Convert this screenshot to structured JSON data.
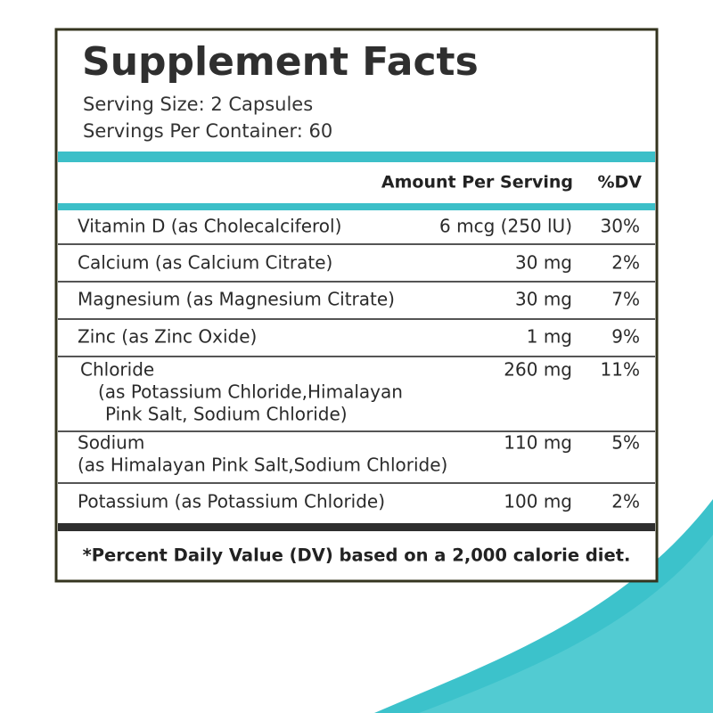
{
  "header": {
    "title": "Supplement Facts",
    "serving_size": "Serving Size: 2 Capsules",
    "servings_per_container": "Servings Per Container: 60"
  },
  "table": {
    "columns": [
      "Amount Per Serving",
      "%DV"
    ],
    "rows": [
      {
        "name": [
          "Vitamin D (as Cholecalciferol)"
        ],
        "amount": "6 mcg (250 lU)",
        "dv": "30%"
      },
      {
        "name": [
          "Calcium (as Calcium Citrate)"
        ],
        "amount": "30 mg",
        "dv": "2%"
      },
      {
        "name": [
          "Magnesium (as Magnesium Citrate)"
        ],
        "amount": "30 mg",
        "dv": "7%"
      },
      {
        "name": [
          "Zinc (as Zinc Oxide)"
        ],
        "amount": "1 mg",
        "dv": "9%"
      },
      {
        "name": [
          "Chloride",
          "(as Potassium Chloride,Himalayan",
          "Pink Salt, Sodium Chloride)"
        ],
        "amount": "260 mg",
        "dv": "11%"
      },
      {
        "name": [
          "Sodium",
          "(as Himalayan Pink Salt,Sodium Chloride)"
        ],
        "amount": "110 mg",
        "dv": "5%"
      },
      {
        "name": [
          "Potassium (as Potassium Chloride)"
        ],
        "amount": "100 mg",
        "dv": "2%"
      }
    ]
  },
  "footnote": "*Percent Daily Value (DV) based on a 2,000 calorie diet."
}
